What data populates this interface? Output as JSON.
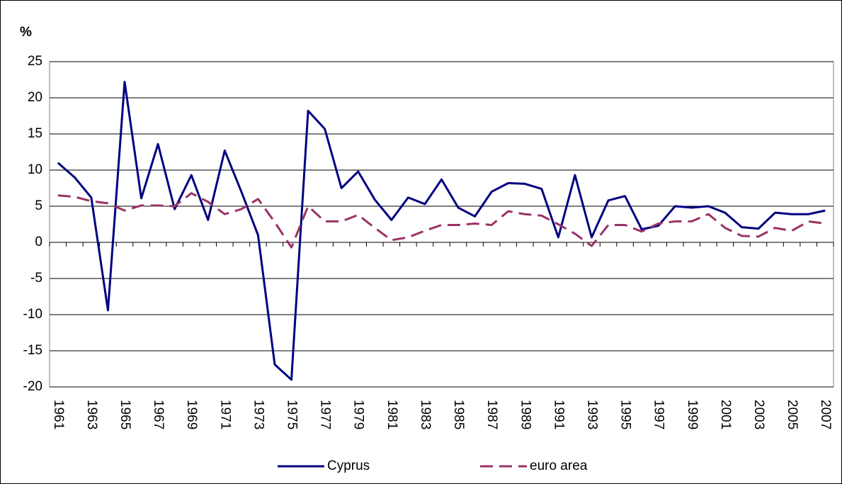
{
  "chart_data": {
    "type": "line",
    "y_label": "%",
    "categories": [
      "1961",
      null,
      "1963",
      null,
      "1965",
      null,
      "1967",
      null,
      "1969",
      null,
      "1971",
      null,
      "1973",
      null,
      "1975",
      null,
      "1977",
      null,
      "1979",
      null,
      "1981",
      null,
      "1983",
      null,
      "1985",
      null,
      "1987",
      null,
      "1989",
      null,
      "1991",
      null,
      "1993",
      null,
      "1995",
      null,
      "1997",
      null,
      "1999",
      null,
      "2001",
      null,
      "2003",
      null,
      "2005",
      null,
      "2007"
    ],
    "series": [
      {
        "name": "Cyprus",
        "color": "#000080",
        "dash": false,
        "values": [
          11.0,
          9.0,
          6.2,
          -9.4,
          22.2,
          6.1,
          13.6,
          4.6,
          9.3,
          3.1,
          12.7,
          7.0,
          1.0,
          -16.9,
          -19.0,
          18.2,
          15.7,
          7.5,
          9.8,
          5.9,
          3.1,
          6.2,
          5.3,
          8.7,
          4.8,
          3.6,
          7.0,
          8.2,
          8.1,
          7.4,
          0.7,
          9.3,
          0.7,
          5.8,
          6.4,
          1.8,
          2.3,
          5.0,
          4.8,
          5.0,
          4.1,
          2.1,
          1.9,
          4.1,
          3.9,
          3.9,
          4.4
        ]
      },
      {
        "name": "euro area",
        "color": "#993366",
        "dash": true,
        "values": [
          6.5,
          6.3,
          5.7,
          5.4,
          4.4,
          5.1,
          5.1,
          5.0,
          6.8,
          5.6,
          3.9,
          4.6,
          6.0,
          2.8,
          -0.7,
          5.0,
          2.9,
          2.9,
          3.8,
          2.0,
          0.3,
          0.7,
          1.6,
          2.4,
          2.4,
          2.6,
          2.4,
          4.3,
          3.9,
          3.7,
          2.5,
          1.2,
          -0.5,
          2.4,
          2.4,
          1.5,
          2.6,
          2.9,
          2.9,
          3.9,
          2.0,
          0.9,
          0.8,
          2.0,
          1.6,
          2.9,
          2.6
        ]
      }
    ],
    "ylim": [
      -20,
      25
    ],
    "yticks": [
      -20,
      -15,
      -10,
      -5,
      0,
      5,
      10,
      15,
      20,
      25
    ],
    "grid": true
  }
}
